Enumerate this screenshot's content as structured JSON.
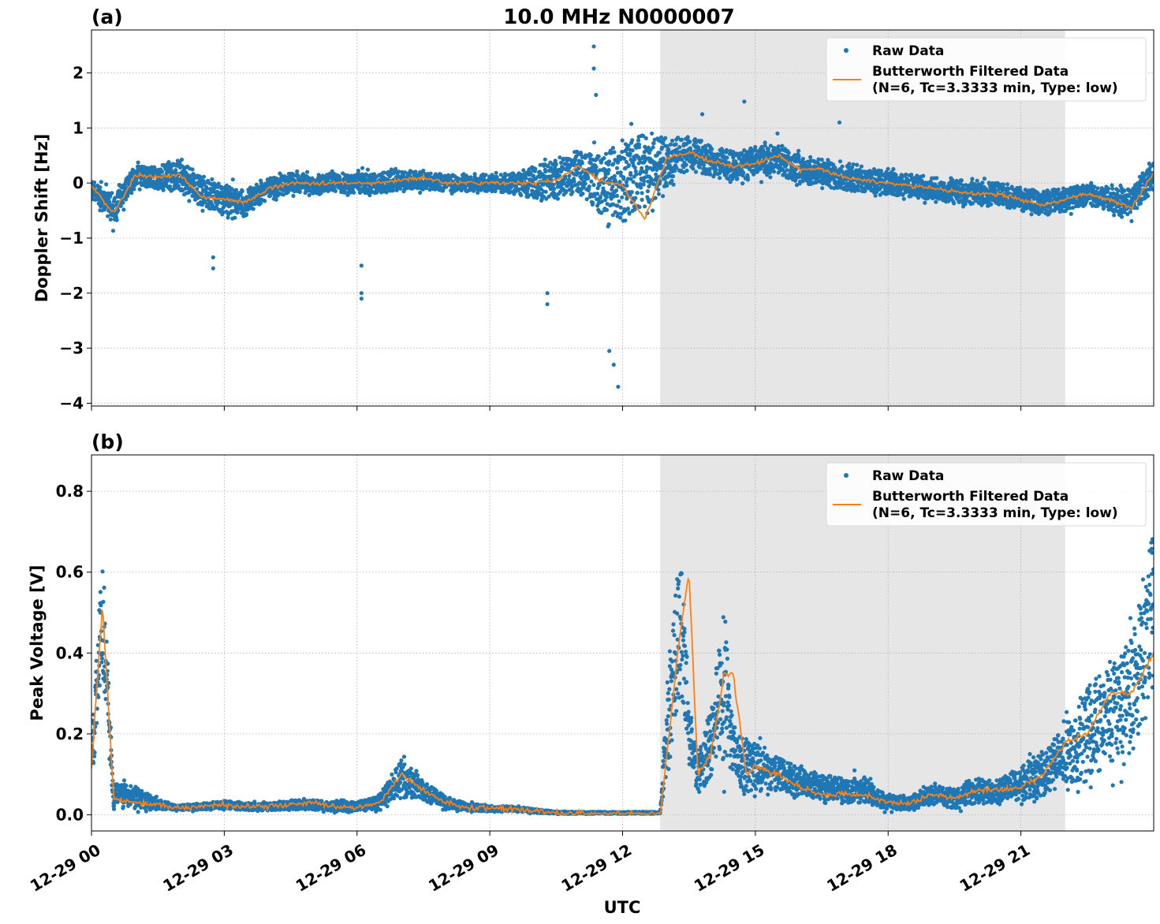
{
  "figure": {
    "title": "10.0 MHz N0000007",
    "xlabel": "UTC",
    "x_ticks": [
      "12-29 00",
      "12-29 03",
      "12-29 06",
      "12-29 09",
      "12-29 12",
      "12-29 15",
      "12-29 18",
      "12-29 21"
    ],
    "shaded_region_hours": [
      12.85,
      22.0
    ],
    "x_range_hours": [
      0,
      24
    ],
    "colors": {
      "raw": "#1f77b4",
      "filtered": "#ff7f0e",
      "shade": "#e6e6e6",
      "grid": "#b0b0b0"
    }
  },
  "chart_data": [
    {
      "type": "scatter",
      "panel_label": "(a)",
      "ylabel": "Doppler Shift [Hz]",
      "ylim": [
        -4.05,
        2.78
      ],
      "y_ticks": [
        2,
        1,
        0,
        -1,
        -2,
        -3,
        -4
      ],
      "y_tick_labels": [
        "2",
        "1",
        "0",
        "−1",
        "−2",
        "−3",
        "−4"
      ],
      "legend": {
        "placement": "upper right",
        "raw_label": "Raw Data",
        "filtered_line1": "Butterworth Filtered Data",
        "filtered_line2": "(N=6, Tc=3.3333 min, Type: low)"
      },
      "x_hours": [
        0,
        0.5,
        1,
        1.5,
        2,
        2.5,
        3,
        3.5,
        4,
        4.5,
        5,
        5.5,
        6,
        6.5,
        7,
        7.5,
        8,
        8.5,
        9,
        9.5,
        10,
        10.5,
        11,
        11.5,
        12,
        12.5,
        13,
        13.5,
        14,
        14.5,
        15,
        15.5,
        16,
        16.5,
        17,
        17.5,
        18,
        18.5,
        19,
        19.5,
        20,
        20.5,
        21,
        21.5,
        22,
        22.5,
        23,
        23.5,
        24
      ],
      "series": [
        {
          "name": "Raw Data",
          "center": [
            -0.1,
            -0.5,
            0.15,
            0.1,
            0.15,
            -0.2,
            -0.3,
            -0.35,
            -0.1,
            0.0,
            0.0,
            0.0,
            0.0,
            0.0,
            0.05,
            0.05,
            0.0,
            0.0,
            0.0,
            0.0,
            0.0,
            0.05,
            0.2,
            0.0,
            0.0,
            0.2,
            0.35,
            0.55,
            0.4,
            0.3,
            0.4,
            0.45,
            0.25,
            0.2,
            0.1,
            0.05,
            0.0,
            -0.05,
            -0.1,
            -0.15,
            -0.2,
            -0.2,
            -0.3,
            -0.35,
            -0.3,
            -0.2,
            -0.3,
            -0.35,
            0.2
          ],
          "spread": [
            0.3,
            0.4,
            0.3,
            0.35,
            0.4,
            0.45,
            0.45,
            0.4,
            0.3,
            0.3,
            0.3,
            0.3,
            0.3,
            0.3,
            0.3,
            0.25,
            0.25,
            0.25,
            0.25,
            0.3,
            0.5,
            0.6,
            0.6,
            0.9,
            1.2,
            1.2,
            0.7,
            0.5,
            0.45,
            0.45,
            0.45,
            0.45,
            0.45,
            0.4,
            0.4,
            0.35,
            0.35,
            0.35,
            0.35,
            0.35,
            0.35,
            0.35,
            0.35,
            0.35,
            0.35,
            0.3,
            0.35,
            0.4,
            0.5
          ]
        },
        {
          "name": "Butterworth Filtered Data",
          "y": [
            -0.05,
            -0.55,
            0.15,
            0.1,
            0.15,
            -0.25,
            -0.3,
            -0.35,
            -0.1,
            0.0,
            0.0,
            0.0,
            0.0,
            0.0,
            0.05,
            0.1,
            0.0,
            0.0,
            0.0,
            0.0,
            0.0,
            0.05,
            0.3,
            0.05,
            -0.05,
            -0.65,
            0.45,
            0.55,
            0.4,
            0.3,
            0.35,
            0.5,
            0.25,
            0.25,
            0.1,
            0.05,
            0.0,
            -0.05,
            -0.1,
            -0.15,
            -0.2,
            -0.2,
            -0.3,
            -0.4,
            -0.3,
            -0.2,
            -0.3,
            -0.45,
            0.2
          ]
        }
      ],
      "outliers": [
        [
          10.3,
          -2.2
        ],
        [
          10.3,
          -2.0
        ],
        [
          11.35,
          2.48
        ],
        [
          11.35,
          2.08
        ],
        [
          11.4,
          1.6
        ],
        [
          11.9,
          -3.7
        ],
        [
          11.8,
          -3.3
        ],
        [
          11.7,
          -3.05
        ],
        [
          6.1,
          -2.0
        ],
        [
          6.1,
          -2.1
        ],
        [
          6.1,
          -1.5
        ],
        [
          2.75,
          -1.55
        ],
        [
          2.75,
          -1.35
        ],
        [
          13.8,
          1.25
        ],
        [
          14.75,
          1.48
        ],
        [
          16.9,
          1.1
        ],
        [
          15.5,
          0.9
        ]
      ]
    },
    {
      "type": "scatter",
      "panel_label": "(b)",
      "ylabel": "Peak Voltage [V]",
      "ylim": [
        -0.04,
        0.89
      ],
      "y_ticks": [
        0.8,
        0.6,
        0.4,
        0.2,
        0.0
      ],
      "y_tick_labels": [
        "0.8",
        "0.6",
        "0.4",
        "0.2",
        "0.0"
      ],
      "legend": {
        "placement": "upper right",
        "raw_label": "Raw Data",
        "filtered_line1": "Butterworth Filtered Data",
        "filtered_line2": "(N=6, Tc=3.3333 min, Type: low)"
      },
      "x_hours": [
        0,
        0.25,
        0.5,
        1,
        1.5,
        2,
        2.5,
        3,
        3.5,
        4,
        4.5,
        5,
        5.5,
        6,
        6.5,
        7,
        7.5,
        8,
        8.5,
        9,
        9.5,
        10,
        10.5,
        11,
        11.5,
        12,
        12.5,
        12.85,
        13.0,
        13.3,
        13.5,
        13.7,
        14.0,
        14.3,
        14.5,
        14.8,
        15.0,
        15.5,
        16,
        16.5,
        17,
        17.5,
        18,
        18.5,
        19,
        19.5,
        20,
        20.5,
        21,
        21.5,
        22,
        22.5,
        23,
        23.5,
        24
      ],
      "series": [
        {
          "name": "Raw Data",
          "center": [
            0.15,
            0.5,
            0.05,
            0.04,
            0.025,
            0.018,
            0.02,
            0.025,
            0.02,
            0.02,
            0.025,
            0.025,
            0.02,
            0.02,
            0.03,
            0.09,
            0.06,
            0.03,
            0.02,
            0.015,
            0.015,
            0.01,
            0.005,
            0.005,
            0.005,
            0.005,
            0.005,
            0.005,
            0.2,
            0.5,
            0.2,
            0.1,
            0.18,
            0.35,
            0.15,
            0.12,
            0.12,
            0.1,
            0.08,
            0.07,
            0.06,
            0.06,
            0.03,
            0.03,
            0.05,
            0.04,
            0.06,
            0.06,
            0.08,
            0.1,
            0.15,
            0.2,
            0.25,
            0.3,
            0.5
          ],
          "spread": [
            0.1,
            0.25,
            0.05,
            0.05,
            0.02,
            0.01,
            0.015,
            0.015,
            0.015,
            0.015,
            0.02,
            0.02,
            0.02,
            0.02,
            0.03,
            0.08,
            0.04,
            0.025,
            0.015,
            0.012,
            0.01,
            0.008,
            0.005,
            0.004,
            0.004,
            0.004,
            0.004,
            0.004,
            0.2,
            0.3,
            0.15,
            0.08,
            0.15,
            0.35,
            0.12,
            0.1,
            0.1,
            0.07,
            0.06,
            0.05,
            0.05,
            0.05,
            0.03,
            0.03,
            0.04,
            0.04,
            0.05,
            0.05,
            0.07,
            0.1,
            0.12,
            0.2,
            0.2,
            0.25,
            0.35
          ]
        },
        {
          "name": "Butterworth Filtered Data",
          "y": [
            0.12,
            0.52,
            0.04,
            0.03,
            0.025,
            0.017,
            0.02,
            0.025,
            0.02,
            0.02,
            0.025,
            0.03,
            0.02,
            0.015,
            0.03,
            0.1,
            0.06,
            0.03,
            0.02,
            0.015,
            0.015,
            0.01,
            0.004,
            0.003,
            0.003,
            0.003,
            0.003,
            0.003,
            0.15,
            0.45,
            0.6,
            0.1,
            0.15,
            0.35,
            0.35,
            0.1,
            0.12,
            0.1,
            0.07,
            0.05,
            0.05,
            0.05,
            0.03,
            0.03,
            0.05,
            0.04,
            0.06,
            0.06,
            0.07,
            0.1,
            0.18,
            0.2,
            0.3,
            0.3,
            0.4
          ]
        }
      ]
    }
  ]
}
